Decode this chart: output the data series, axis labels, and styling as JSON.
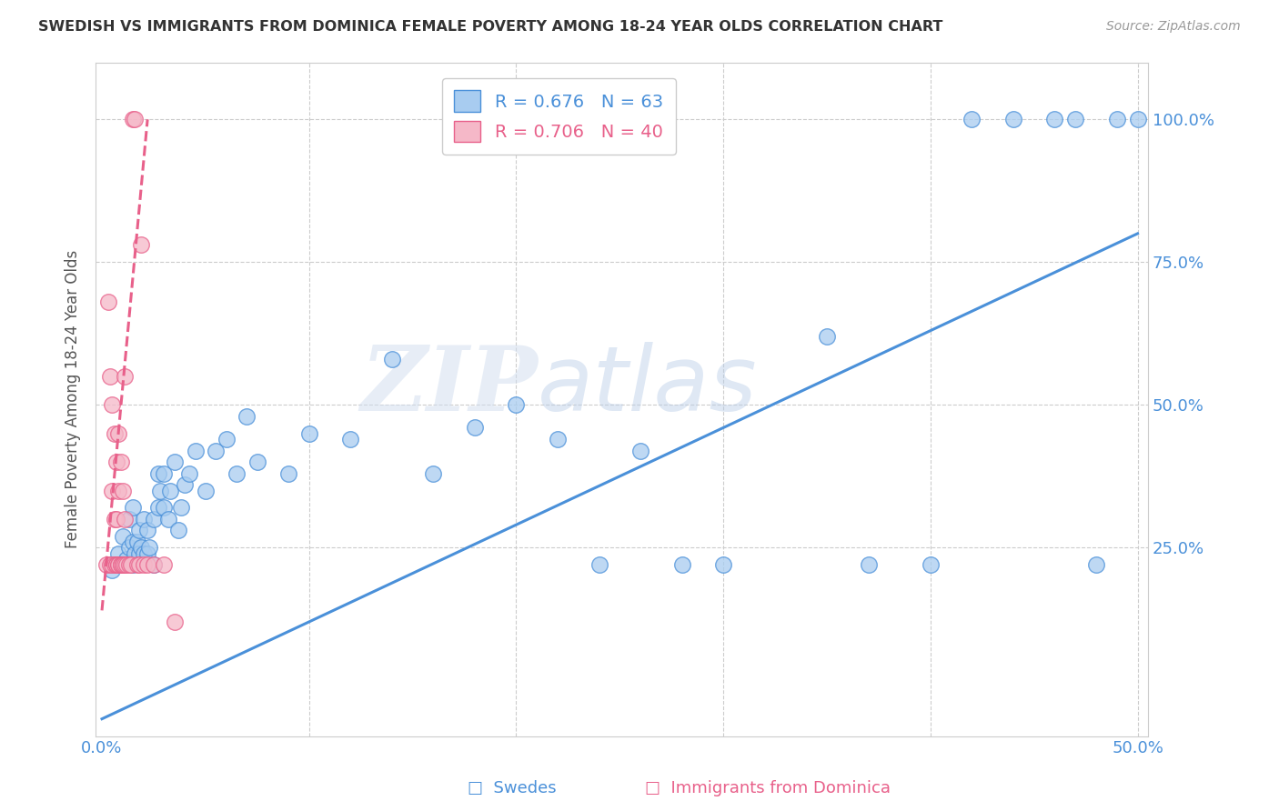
{
  "title": "SWEDISH VS IMMIGRANTS FROM DOMINICA FEMALE POVERTY AMONG 18-24 YEAR OLDS CORRELATION CHART",
  "source": "Source: ZipAtlas.com",
  "ylabel": "Female Poverty Among 18-24 Year Olds",
  "blue_R": 0.676,
  "blue_N": 63,
  "pink_R": 0.706,
  "pink_N": 40,
  "blue_color": "#A8CCF0",
  "pink_color": "#F5B8C8",
  "blue_line_color": "#4A90D9",
  "pink_line_color": "#E8608A",
  "watermark_color": "#C8D8F0",
  "xlim": [
    -0.003,
    0.505
  ],
  "ylim": [
    -0.08,
    1.1
  ],
  "blue_scatter_x": [
    0.005,
    0.008,
    0.01,
    0.01,
    0.012,
    0.013,
    0.013,
    0.015,
    0.015,
    0.015,
    0.016,
    0.017,
    0.018,
    0.018,
    0.019,
    0.02,
    0.02,
    0.022,
    0.022,
    0.023,
    0.025,
    0.025,
    0.027,
    0.027,
    0.028,
    0.03,
    0.03,
    0.032,
    0.033,
    0.035,
    0.037,
    0.038,
    0.04,
    0.042,
    0.045,
    0.05,
    0.055,
    0.06,
    0.065,
    0.07,
    0.075,
    0.09,
    0.1,
    0.12,
    0.14,
    0.16,
    0.18,
    0.2,
    0.22,
    0.24,
    0.26,
    0.28,
    0.3,
    0.35,
    0.37,
    0.4,
    0.42,
    0.44,
    0.46,
    0.47,
    0.48,
    0.49,
    0.5
  ],
  "blue_scatter_y": [
    0.21,
    0.24,
    0.22,
    0.27,
    0.23,
    0.25,
    0.3,
    0.22,
    0.26,
    0.32,
    0.24,
    0.26,
    0.24,
    0.28,
    0.25,
    0.24,
    0.3,
    0.24,
    0.28,
    0.25,
    0.22,
    0.3,
    0.32,
    0.38,
    0.35,
    0.32,
    0.38,
    0.3,
    0.35,
    0.4,
    0.28,
    0.32,
    0.36,
    0.38,
    0.42,
    0.35,
    0.42,
    0.44,
    0.38,
    0.48,
    0.4,
    0.38,
    0.45,
    0.44,
    0.58,
    0.38,
    0.46,
    0.5,
    0.44,
    0.22,
    0.42,
    0.22,
    0.22,
    0.62,
    0.22,
    0.22,
    1.0,
    1.0,
    1.0,
    1.0,
    0.22,
    1.0,
    1.0
  ],
  "pink_scatter_x": [
    0.002,
    0.003,
    0.004,
    0.004,
    0.005,
    0.005,
    0.005,
    0.006,
    0.006,
    0.006,
    0.007,
    0.007,
    0.007,
    0.007,
    0.008,
    0.008,
    0.008,
    0.008,
    0.009,
    0.009,
    0.009,
    0.01,
    0.01,
    0.01,
    0.011,
    0.011,
    0.011,
    0.012,
    0.013,
    0.014,
    0.015,
    0.016,
    0.017,
    0.018,
    0.019,
    0.02,
    0.022,
    0.025,
    0.03,
    0.035
  ],
  "pink_scatter_y": [
    0.22,
    0.68,
    0.22,
    0.55,
    0.22,
    0.5,
    0.35,
    0.22,
    0.45,
    0.3,
    0.22,
    0.4,
    0.3,
    0.22,
    0.22,
    0.35,
    0.45,
    0.22,
    0.22,
    0.4,
    0.22,
    0.22,
    0.35,
    0.22,
    0.22,
    0.55,
    0.3,
    0.22,
    0.22,
    0.22,
    1.0,
    1.0,
    0.22,
    0.22,
    0.78,
    0.22,
    0.22,
    0.22,
    0.22,
    0.12
  ],
  "blue_line_x0": 0.0,
  "blue_line_y0": -0.05,
  "blue_line_x1": 0.5,
  "blue_line_y1": 0.8,
  "pink_line_x0": 0.0,
  "pink_line_y0": 0.14,
  "pink_line_x1": 0.022,
  "pink_line_y1": 1.0
}
